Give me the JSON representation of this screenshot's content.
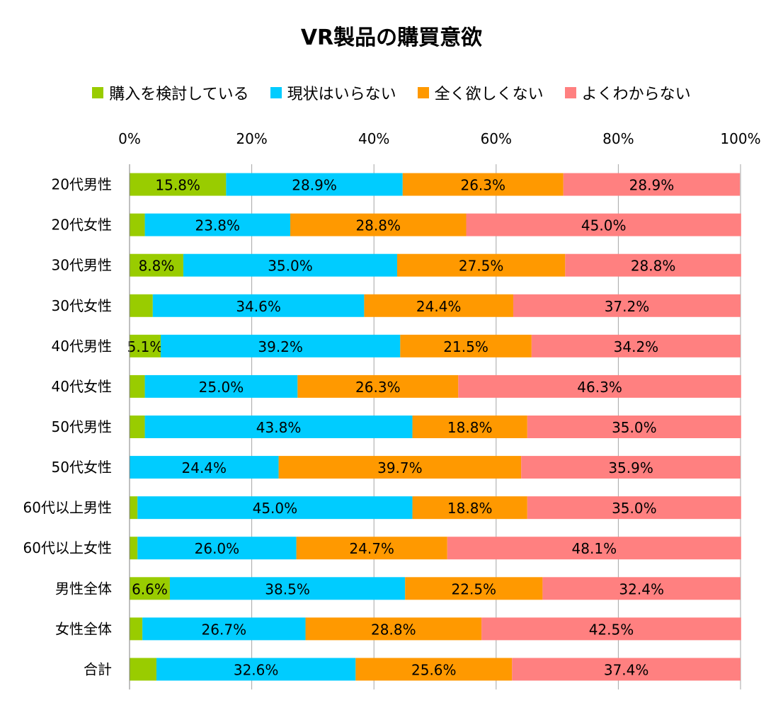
{
  "chart_data": {
    "type": "bar",
    "orientation": "horizontal",
    "stacked": true,
    "percent": true,
    "title": "VR製品の購買意欲",
    "xlim": [
      0,
      100
    ],
    "xticks": [
      "0%",
      "20%",
      "40%",
      "60%",
      "80%",
      "100%"
    ],
    "grid": true,
    "legend_position": "top",
    "categories": [
      "20代男性",
      "20代女性",
      "30代男性",
      "30代女性",
      "40代男性",
      "40代女性",
      "50代男性",
      "50代女性",
      "60代以上男性",
      "60代以上女性",
      "男性全体",
      "女性全体",
      "合計"
    ],
    "series": [
      {
        "name": "購入を検討している",
        "color": "#99cc00",
        "values": [
          15.8,
          2.5,
          8.8,
          3.8,
          5.1,
          2.5,
          2.5,
          0.0,
          1.3,
          1.3,
          6.6,
          2.1,
          4.4
        ],
        "labels": [
          "15.8%",
          "",
          "8.8%",
          "",
          "5.1%",
          "",
          "",
          "",
          "",
          "",
          "6.6%",
          "",
          ""
        ]
      },
      {
        "name": "現状はいらない",
        "color": "#00ccff",
        "values": [
          28.9,
          23.8,
          35.0,
          34.6,
          39.2,
          25.0,
          43.8,
          24.4,
          45.0,
          26.0,
          38.5,
          26.7,
          32.6
        ],
        "labels": [
          "28.9%",
          "23.8%",
          "35.0%",
          "34.6%",
          "39.2%",
          "25.0%",
          "43.8%",
          "24.4%",
          "45.0%",
          "26.0%",
          "38.5%",
          "26.7%",
          "32.6%"
        ]
      },
      {
        "name": "全く欲しくない",
        "color": "#ff9900",
        "values": [
          26.3,
          28.8,
          27.5,
          24.4,
          21.5,
          26.3,
          18.8,
          39.7,
          18.8,
          24.7,
          22.5,
          28.8,
          25.6
        ],
        "labels": [
          "26.3%",
          "28.8%",
          "27.5%",
          "24.4%",
          "21.5%",
          "26.3%",
          "18.8%",
          "39.7%",
          "18.8%",
          "24.7%",
          "22.5%",
          "28.8%",
          "25.6%"
        ]
      },
      {
        "name": "よくわからない",
        "color": "#ff8080",
        "values": [
          28.9,
          45.0,
          28.8,
          37.2,
          34.2,
          46.3,
          35.0,
          35.9,
          35.0,
          48.1,
          32.4,
          42.5,
          37.4
        ],
        "labels": [
          "28.9%",
          "45.0%",
          "28.8%",
          "37.2%",
          "34.2%",
          "46.3%",
          "35.0%",
          "35.9%",
          "35.0%",
          "48.1%",
          "32.4%",
          "42.5%",
          "37.4%"
        ]
      }
    ]
  }
}
